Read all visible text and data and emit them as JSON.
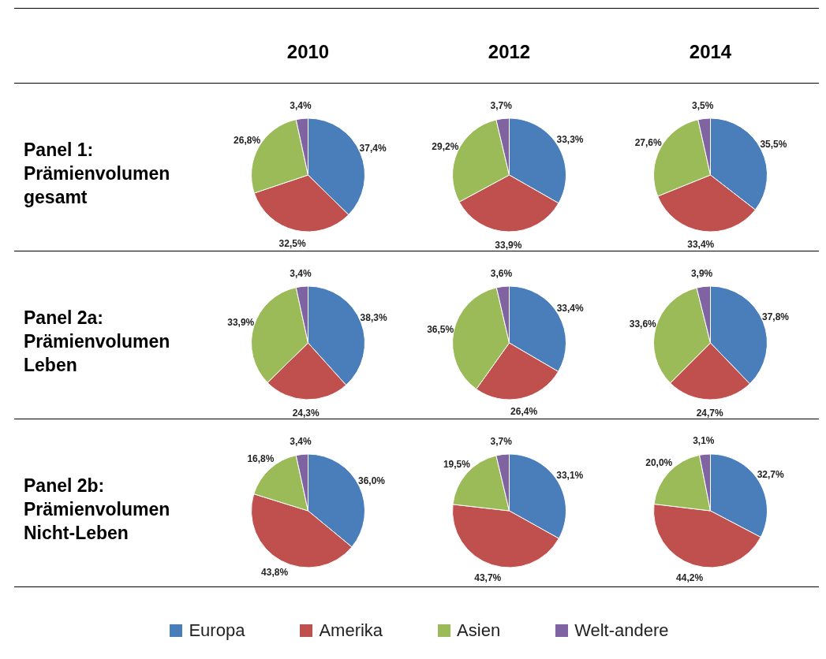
{
  "chart_data": [
    {
      "type": "pie",
      "title": "2010",
      "ylabel": "Panel 1: Prämienvolumen gesamt",
      "categories": [
        null,
        null,
        null,
        null
      ],
      "values": [
        37.4,
        32.5,
        26.8,
        3.4
      ],
      "value_labels": [
        "37,4%",
        "32,5%",
        "26,8%",
        "3,4%"
      ],
      "colors": [
        "#4a7ebb",
        "#c0504d",
        "#9bbb59",
        "#8064a2"
      ]
    },
    {
      "type": "pie",
      "title": "2012",
      "categories": [
        null,
        null,
        null,
        null
      ],
      "values": [
        33.3,
        33.9,
        29.2,
        3.7
      ],
      "value_labels": [
        "33,3%",
        "33,9%",
        "29,2%",
        "3,7%"
      ],
      "colors": [
        "#4a7ebb",
        "#c0504d",
        "#9bbb59",
        "#8064a2"
      ]
    },
    {
      "type": "pie",
      "title": "2014",
      "categories": [
        null,
        null,
        null,
        null
      ],
      "values": [
        35.5,
        33.4,
        27.6,
        3.5
      ],
      "value_labels": [
        "35,5%",
        "33,4%",
        "27,6%",
        "3,5%"
      ],
      "colors": [
        "#4a7ebb",
        "#c0504d",
        "#9bbb59",
        "#8064a2"
      ]
    },
    {
      "type": "pie",
      "ylabel": "Panel 2a: Prämienvolumen Leben",
      "categories": [
        null,
        null,
        null,
        null
      ],
      "values": [
        38.3,
        24.3,
        33.9,
        3.4
      ],
      "value_labels": [
        "38,3%",
        "24,3%",
        "33,9%",
        "3,4%"
      ],
      "colors": [
        "#4a7ebb",
        "#c0504d",
        "#9bbb59",
        "#8064a2"
      ]
    },
    {
      "type": "pie",
      "categories": [
        null,
        null,
        null,
        null
      ],
      "values": [
        33.4,
        26.4,
        36.5,
        3.6
      ],
      "value_labels": [
        "33,4%",
        "26,4%",
        "36,5%",
        "3,6%"
      ],
      "colors": [
        "#4a7ebb",
        "#c0504d",
        "#9bbb59",
        "#8064a2"
      ]
    },
    {
      "type": "pie",
      "categories": [
        null,
        null,
        null,
        null
      ],
      "values": [
        37.8,
        24.7,
        33.6,
        3.9
      ],
      "value_labels": [
        "37,8%",
        "24,7%",
        "33,6%",
        "3,9%"
      ],
      "colors": [
        "#4a7ebb",
        "#c0504d",
        "#9bbb59",
        "#8064a2"
      ]
    },
    {
      "type": "pie",
      "ylabel": "Panel 2b: Prämienvolumen Nicht-Leben",
      "categories": [
        null,
        null,
        null,
        null
      ],
      "values": [
        36.0,
        43.8,
        16.8,
        3.4
      ],
      "value_labels": [
        "36,0%",
        "43,8%",
        "16,8%",
        "3,4%"
      ],
      "colors": [
        "#4a7ebb",
        "#c0504d",
        "#9bbb59",
        "#8064a2"
      ]
    },
    {
      "type": "pie",
      "categories": [
        null,
        null,
        null,
        null
      ],
      "values": [
        33.1,
        43.7,
        19.5,
        3.7
      ],
      "value_labels": [
        "33,1%",
        "43,7%",
        "19,5%",
        "3,7%"
      ],
      "colors": [
        "#4a7ebb",
        "#c0504d",
        "#9bbb59",
        "#8064a2"
      ]
    },
    {
      "type": "pie",
      "legend": "bottom",
      "categories": [
        "Europa",
        "Amerika",
        "Asien",
        "Welt-andere"
      ],
      "values": [
        32.7,
        44.2,
        20.0,
        3.1
      ],
      "value_labels": [
        "32,7%",
        "44,2%",
        "20,0%",
        "3,1%"
      ],
      "colors": [
        "#4a7ebb",
        "#c0504d",
        "#9bbb59",
        "#8064a2"
      ]
    }
  ]
}
